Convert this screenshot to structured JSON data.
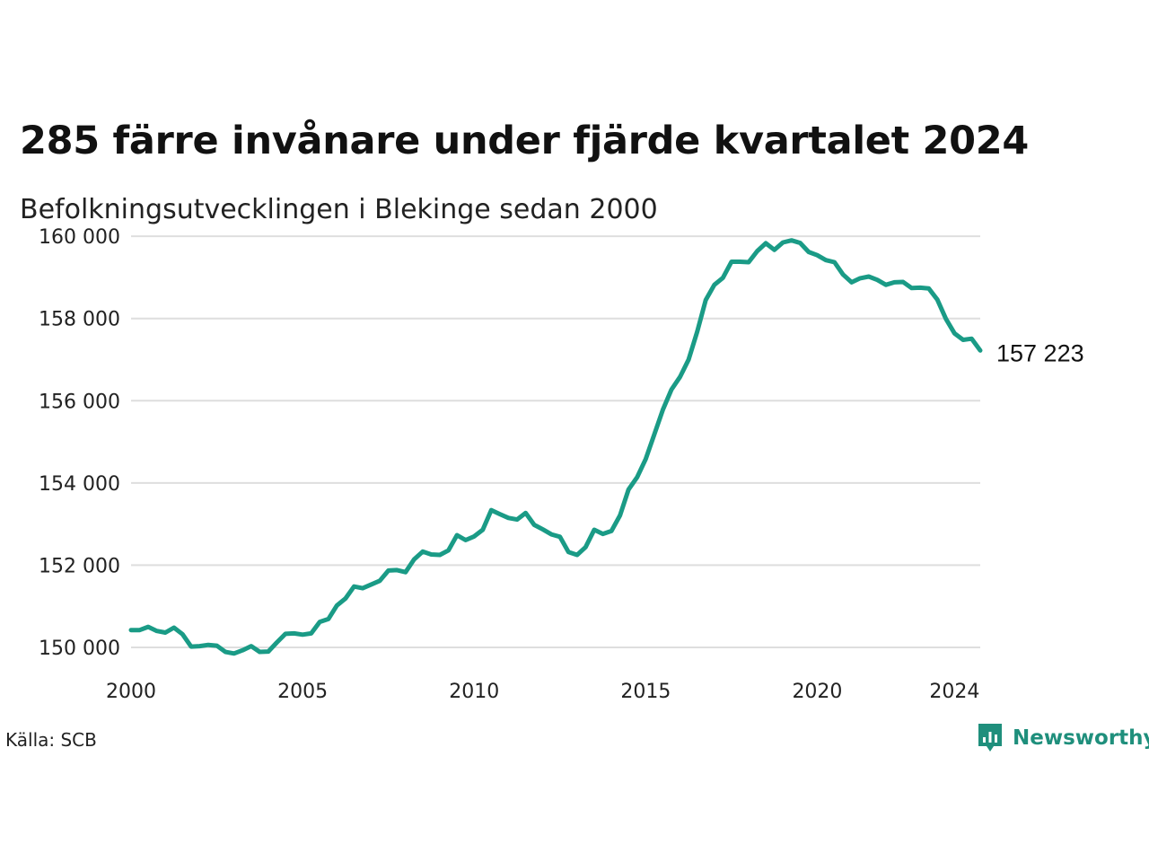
{
  "title": "285 färre invånare under fjärde kvartalet 2024",
  "subtitle": "Befolkningsutvecklingen i Blekinge sedan 2000",
  "source": "Källa: SCB",
  "brand": {
    "name": "Newsworthy",
    "color": "#1f8f7c"
  },
  "chart_data": {
    "type": "line",
    "title": "285 färre invånare under fjärde kvartalet 2024",
    "subtitle": "Befolkningsutvecklingen i Blekinge sedan 2000",
    "xlabel": "",
    "ylabel": "",
    "x_ticks": [
      2000,
      2005,
      2010,
      2015,
      2020,
      2024
    ],
    "x_tick_labels": [
      "2000",
      "2005",
      "2010",
      "2015",
      "2020",
      "2024"
    ],
    "y_ticks": [
      150000,
      152000,
      154000,
      156000,
      158000,
      160000
    ],
    "y_tick_labels": [
      "150 000",
      "152 000",
      "154 000",
      "156 000",
      "158 000",
      "160 000"
    ],
    "xlim": [
      2000,
      2024.75
    ],
    "ylim": [
      149650,
      160200
    ],
    "grid": "horizontal",
    "line_color": "#1a9b86",
    "end_label": "157 223",
    "series": [
      {
        "x": [
          2000.0,
          2000.25,
          2000.5,
          2000.75,
          2001.0,
          2001.25,
          2001.5,
          2001.75,
          2002.0,
          2002.25,
          2002.5,
          2002.75,
          2003.0,
          2003.25,
          2003.5,
          2003.75,
          2004.0,
          2004.25,
          2004.5,
          2004.75,
          2005.0,
          2005.25,
          2005.5,
          2005.75,
          2006.0,
          2006.25,
          2006.5,
          2006.75,
          2007.0,
          2007.25,
          2007.5,
          2007.75,
          2008.0,
          2008.25,
          2008.5,
          2008.75,
          2009.0,
          2009.25,
          2009.5,
          2009.75,
          2010.0,
          2010.25,
          2010.5,
          2010.75,
          2011.0,
          2011.25,
          2011.5,
          2011.75,
          2012.0,
          2012.25,
          2012.5,
          2012.75,
          2013.0,
          2013.25,
          2013.5,
          2013.75,
          2014.0,
          2014.25,
          2014.5,
          2014.75,
          2015.0,
          2015.25,
          2015.5,
          2015.75,
          2016.0,
          2016.25,
          2016.5,
          2016.75,
          2017.0,
          2017.25,
          2017.5,
          2017.75,
          2018.0,
          2018.25,
          2018.5,
          2018.75,
          2019.0,
          2019.25,
          2019.5,
          2019.75,
          2020.0,
          2020.25,
          2020.5,
          2020.75,
          2021.0,
          2021.25,
          2021.5,
          2021.75,
          2022.0,
          2022.25,
          2022.5,
          2022.75,
          2023.0,
          2023.25,
          2023.5,
          2023.75,
          2024.0,
          2024.25,
          2024.5,
          2024.75
        ],
        "values": [
          150420,
          150420,
          150500,
          150400,
          150360,
          150480,
          150320,
          150020,
          150030,
          150060,
          150040,
          149890,
          149850,
          149930,
          150030,
          149890,
          149900,
          150120,
          150330,
          150340,
          150310,
          150340,
          150620,
          150690,
          151020,
          151190,
          151480,
          151440,
          151530,
          151620,
          151870,
          151880,
          151830,
          152140,
          152330,
          152260,
          152250,
          152360,
          152730,
          152610,
          152700,
          152860,
          153340,
          153240,
          153150,
          153110,
          153270,
          152980,
          152870,
          152750,
          152690,
          152320,
          152250,
          152440,
          152860,
          152760,
          152830,
          153210,
          153840,
          154140,
          154580,
          155180,
          155780,
          156270,
          156580,
          157000,
          157680,
          158450,
          158820,
          158990,
          159380,
          159380,
          159370,
          159640,
          159830,
          159670,
          159850,
          159900,
          159840,
          159620,
          159540,
          159420,
          159370,
          159070,
          158880,
          158980,
          159020,
          158940,
          158820,
          158880,
          158890,
          158740,
          158750,
          158730,
          158460,
          157990,
          157640,
          157480,
          157510,
          157223
        ]
      }
    ]
  }
}
